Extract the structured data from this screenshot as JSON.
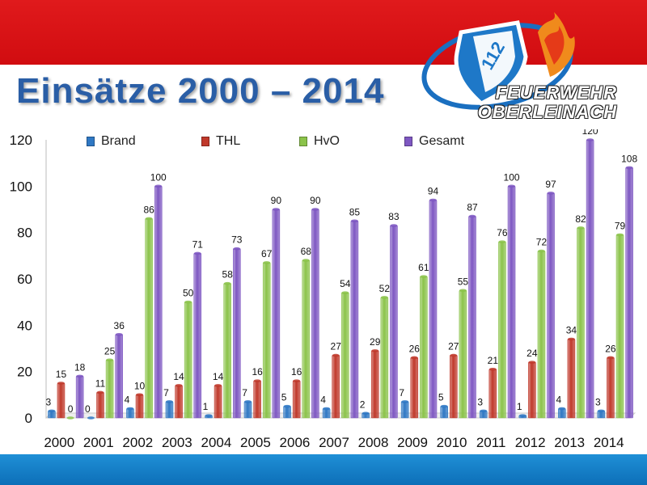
{
  "title": "Einsätze 2000 – 2014",
  "logo": {
    "number": "112",
    "line1": "FEUERWEHR",
    "line2": "OBERLEINACH"
  },
  "colors": {
    "top_band": "#e01a1c",
    "bottom_band": "#1f8fd6",
    "title": "#2a5ea6"
  },
  "chart_data": {
    "type": "bar",
    "categories": [
      "2000",
      "2001",
      "2002",
      "2003",
      "2004",
      "2005",
      "2006",
      "2007",
      "2008",
      "2009",
      "2010",
      "2011",
      "2012",
      "2013",
      "2014"
    ],
    "series": [
      {
        "name": "Brand",
        "color": "#2f78c4",
        "values": [
          3,
          0,
          4,
          7,
          1,
          7,
          5,
          4,
          2,
          7,
          5,
          3,
          1,
          4,
          3
        ]
      },
      {
        "name": "THL",
        "color": "#c0392b",
        "values": [
          15,
          11,
          10,
          14,
          14,
          16,
          16,
          27,
          29,
          26,
          27,
          21,
          24,
          34,
          26
        ]
      },
      {
        "name": "HvO",
        "color": "#8bc34a",
        "values": [
          0,
          25,
          86,
          50,
          58,
          67,
          68,
          54,
          52,
          61,
          55,
          76,
          72,
          82,
          79
        ]
      },
      {
        "name": "Gesamt",
        "color": "#7e57c2",
        "values": [
          18,
          36,
          100,
          71,
          73,
          90,
          90,
          85,
          83,
          94,
          87,
          100,
          97,
          120,
          108
        ]
      }
    ],
    "ylim": [
      0,
      120
    ],
    "yticks": [
      "0",
      "20",
      "40",
      "60",
      "80",
      "100",
      "120"
    ],
    "legend": "top",
    "grid": false
  }
}
